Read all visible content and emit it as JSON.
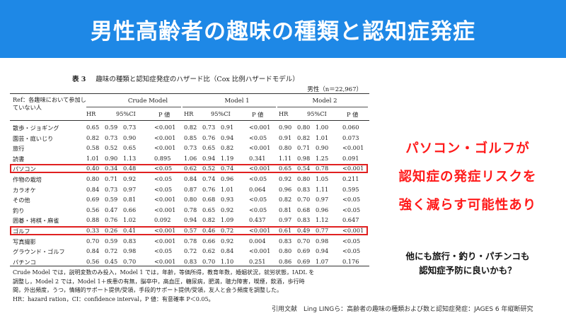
{
  "banner": {
    "title": "男性高齢者の趣味の種類と認知症発症"
  },
  "table": {
    "label": "表 3",
    "title": "趣味の種類と認知症発症のハザード比（Cox 比例ハザードモデル）",
    "subtitle": "男性（n＝22,967）",
    "ref_label": "Ref：各趣味において参加していない人",
    "groups": [
      "Crude Model",
      "Model 1",
      "Model 2"
    ],
    "col_headers": [
      "HR",
      "95%CI",
      "P 値"
    ],
    "rows": [
      {
        "name": "散歩・ジョギング",
        "v": [
          "0.65",
          "0.59",
          "0.73",
          "<0.001",
          "0.82",
          "0.73",
          "0.91",
          "<0.001",
          "0.90",
          "0.80",
          "1.00",
          "0.060"
        ]
      },
      {
        "name": "園芸・庭いじり",
        "v": [
          "0.82",
          "0.73",
          "0.90",
          "<0.001",
          "0.85",
          "0.76",
          "0.94",
          "<0.05",
          "0.91",
          "0.82",
          "1.01",
          "0.073"
        ]
      },
      {
        "name": "旅行",
        "v": [
          "0.58",
          "0.52",
          "0.65",
          "<0.001",
          "0.73",
          "0.65",
          "0.82",
          "<0.001",
          "0.80",
          "0.71",
          "0.90",
          "<0.001"
        ]
      },
      {
        "name": "読書",
        "v": [
          "1.01",
          "0.90",
          "1.13",
          "0.895",
          "1.06",
          "0.94",
          "1.19",
          "0.341",
          "1.11",
          "0.98",
          "1.25",
          "0.091"
        ]
      },
      {
        "name": "パソコン",
        "v": [
          "0.40",
          "0.34",
          "0.48",
          "<0.05",
          "0.62",
          "0.52",
          "0.74",
          "<0.001",
          "0.65",
          "0.54",
          "0.78",
          "<0.001"
        ]
      },
      {
        "name": "作物の栽培",
        "v": [
          "0.80",
          "0.71",
          "0.92",
          "<0.05",
          "0.84",
          "0.74",
          "0.96",
          "<0.05",
          "0.92",
          "0.80",
          "1.05",
          "0.211"
        ]
      },
      {
        "name": "カラオケ",
        "v": [
          "0.84",
          "0.73",
          "0.97",
          "<0.05",
          "0.87",
          "0.76",
          "1.01",
          "0.064",
          "0.96",
          "0.83",
          "1.11",
          "0.595"
        ]
      },
      {
        "name": "その他",
        "v": [
          "0.69",
          "0.59",
          "0.81",
          "<0.001",
          "0.80",
          "0.68",
          "0.93",
          "<0.05",
          "0.82",
          "0.70",
          "0.97",
          "<0.05"
        ]
      },
      {
        "name": "釣り",
        "v": [
          "0.56",
          "0.47",
          "0.66",
          "<0.001",
          "0.78",
          "0.65",
          "0.92",
          "<0.05",
          "0.81",
          "0.68",
          "0.96",
          "<0.05"
        ]
      },
      {
        "name": "囲碁・将棋・麻雀",
        "v": [
          "0.88",
          "0.76",
          "1.02",
          "0.092",
          "0.94",
          "0.82",
          "1.09",
          "0.437",
          "0.97",
          "0.83",
          "1.12",
          "0.647"
        ]
      },
      {
        "name": "ゴルフ",
        "v": [
          "0.33",
          "0.26",
          "0.41",
          "<0.001",
          "0.57",
          "0.46",
          "0.72",
          "<0.001",
          "0.61",
          "0.49",
          "0.77",
          "<0.001"
        ]
      },
      {
        "name": "写真撮影",
        "v": [
          "0.70",
          "0.59",
          "0.83",
          "<0.001",
          "0.78",
          "0.66",
          "0.92",
          "0.004",
          "0.83",
          "0.70",
          "0.98",
          "<0.05"
        ]
      },
      {
        "name": "グラウンド・ゴルフ",
        "v": [
          "0.84",
          "0.72",
          "0.98",
          "<0.05",
          "0.72",
          "0.62",
          "0.84",
          "<0.001",
          "0.80",
          "0.69",
          "0.94",
          "<0.05"
        ]
      },
      {
        "name": "パチンコ",
        "v": [
          "0.56",
          "0.45",
          "0.70",
          "<0.001",
          "0.83",
          "0.70",
          "1.10",
          "0.251",
          "0.86",
          "0.69",
          "1.07",
          "0.176"
        ]
      }
    ],
    "notes": [
      "Crude Model では，説明変数のみ投入，Model 1 では，年齢，等価所得，教育年数，婚姻状況，就労状態，IADL を",
      "調整し，Model 2 では，Model 1＋疾患の有無，脳卒中，高血圧，糖尿病，肥満，聴力障害，喫煙，飲酒，歩行時",
      "間，外出頻度，うつ，情緒的サポート提供/受領，手段的サポート提供/受領，友人と会う頻度を調整した。",
      "HR：hazard ration，CI：confidence interval，P 値：有意確率 P＜0.05。"
    ]
  },
  "callout": {
    "line1": "パソコン・ゴルフが",
    "line2": "認知症の発症リスクを",
    "line3": "強く減らす可能性あり"
  },
  "note": {
    "line1": "他にも旅行・釣り・パチンコも",
    "line2": "認知症予防に良いかも？"
  },
  "citation": "引用文献　Ling LINGら：高齢者の趣味の種類および数と認知症発症：JAGES 6 年縦断研究",
  "colors": {
    "banner": "#1e88e6",
    "highlight": "#e02020",
    "callout": "#ff1a1a"
  }
}
